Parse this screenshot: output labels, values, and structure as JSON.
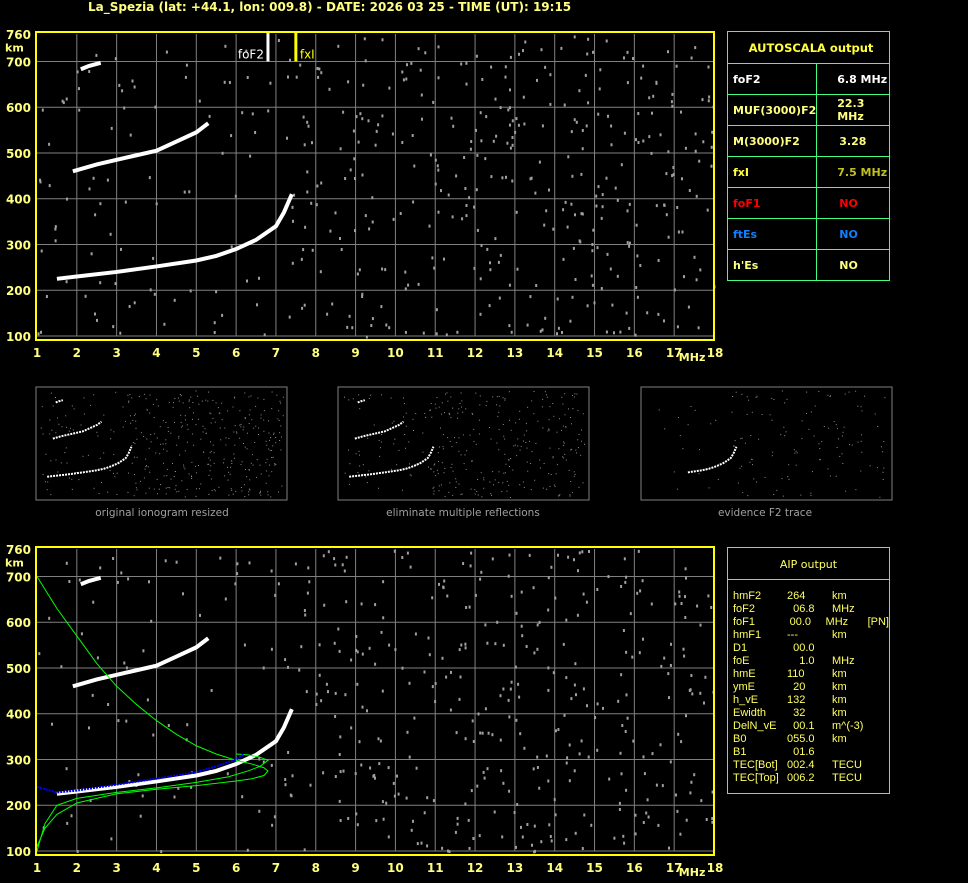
{
  "header": {
    "title": "La_Spezia (lat: +44.1, lon: 009.8) - DATE: 2026 03 25 - TIME (UT): 19:15"
  },
  "colors": {
    "axis": "#ffff00",
    "label": "#ffff80",
    "grid": "#808080",
    "trace": "#ffffff",
    "noise": "#a0a0a0",
    "profile": "#00ff00",
    "aip_trace": "#0000ff",
    "table_border": "#40ff80"
  },
  "chart_data": [
    {
      "type": "scatter",
      "name_printed": "",
      "xlabel": "MHz",
      "ylabel": "km",
      "xlim": [
        1,
        18
      ],
      "ylim": [
        100,
        760
      ],
      "x_ticks": [
        "1",
        "2",
        "3",
        "4",
        "5",
        "6",
        "7",
        "8",
        "9",
        "10",
        "11",
        "12",
        "13",
        "14",
        "15",
        "16",
        "17",
        "18"
      ],
      "y_ticks": [
        "100",
        "200",
        "300",
        "400",
        "500",
        "600",
        "700",
        "760"
      ],
      "grid": true,
      "markers": [
        {
          "label": "foF2",
          "x": 6.8,
          "color": "#ffffff"
        },
        {
          "label": "fxI",
          "x": 7.5,
          "color": "#ffff00"
        }
      ],
      "traces": [
        {
          "x": [
            1.5,
            2,
            3,
            4,
            5,
            5.5,
            6,
            6.5,
            7,
            7.2,
            7.4
          ],
          "y": [
            225,
            230,
            240,
            252,
            265,
            275,
            290,
            310,
            340,
            370,
            410
          ]
        },
        {
          "x": [
            1.9,
            2.5,
            3,
            3.5,
            4,
            4.5,
            5,
            5.3
          ],
          "y": [
            460,
            475,
            485,
            495,
            505,
            525,
            545,
            565
          ]
        },
        {
          "x": [
            2.1,
            2.3,
            2.6
          ],
          "y": [
            683,
            690,
            697
          ]
        }
      ]
    },
    {
      "type": "line",
      "xlabel": "MHz",
      "ylabel": "km",
      "xlim": [
        1,
        18
      ],
      "ylim": [
        100,
        760
      ],
      "x_ticks": [
        "1",
        "2",
        "3",
        "4",
        "5",
        "6",
        "7",
        "8",
        "9",
        "10",
        "11",
        "12",
        "13",
        "14",
        "15",
        "16",
        "17",
        "18"
      ],
      "y_ticks": [
        "100",
        "200",
        "300",
        "400",
        "500",
        "600",
        "700",
        "760"
      ],
      "grid": true,
      "profiles": [
        {
          "color": "#00ff00",
          "x": [
            1,
            1.5,
            2,
            2.5,
            3,
            3.5,
            4,
            4.5,
            5,
            5.5,
            6,
            6.4,
            6.7,
            6.8,
            6.7,
            6.4,
            6,
            5,
            4,
            3,
            2,
            1.5,
            1.2,
            1
          ],
          "y": [
            700,
            630,
            570,
            510,
            460,
            420,
            385,
            355,
            330,
            312,
            298,
            290,
            282,
            275,
            265,
            258,
            253,
            243,
            235,
            225,
            205,
            180,
            150,
            110
          ]
        },
        {
          "color": "#00ff00",
          "x": [
            1,
            1.2,
            1.5,
            2,
            3,
            4,
            5,
            5.8,
            6.3,
            6.6,
            6.8,
            6.6,
            6.3,
            6
          ],
          "y": [
            100,
            160,
            200,
            215,
            228,
            238,
            250,
            262,
            275,
            285,
            298,
            305,
            310,
            312
          ]
        }
      ],
      "aip_trace": {
        "color": "#0000ff",
        "x": [
          1,
          1.5,
          2,
          3,
          4,
          5,
          5.5,
          6,
          6.2
        ],
        "y": [
          240,
          228,
          232,
          245,
          258,
          272,
          285,
          300,
          312
        ]
      }
    }
  ],
  "autoscala": {
    "title": "AUTOSCALA output",
    "rows": [
      {
        "label": "foF2",
        "value": "6.8 MHz",
        "color": "#ffffff",
        "vcolor": "#ffffff"
      },
      {
        "label": "MUF(3000)F2",
        "value": "22.3 MHz",
        "color": "#ffff80",
        "vcolor": "#ffff80"
      },
      {
        "label": "M(3000)F2",
        "value": "3.28",
        "color": "#ffff80",
        "vcolor": "#ffff80"
      },
      {
        "label": "fxI",
        "value": "7.5 MHz",
        "color": "#ffff40",
        "vcolor": "#c0c020"
      },
      {
        "label": "foF1",
        "value": "NO",
        "color": "#ff0000",
        "vcolor": "#ff0000"
      },
      {
        "label": "ftEs",
        "value": "NO",
        "color": "#1080ff",
        "vcolor": "#1080ff"
      },
      {
        "label": "h'Es",
        "value": "NO",
        "color": "#ffff80",
        "vcolor": "#ffff80"
      }
    ]
  },
  "aip": {
    "title": "AIP output",
    "rows": [
      {
        "k": "hmF2",
        "v": "264",
        "u": "km",
        "x": ""
      },
      {
        "k": "foF2",
        "v": "  06.8",
        "u": "MHz",
        "x": ""
      },
      {
        "k": "foF1",
        "v": "  00.0",
        "u": "MHz",
        "x": "[PN]"
      },
      {
        "k": "hmF1",
        "v": "---",
        "u": "km",
        "x": ""
      },
      {
        "k": "D1",
        "v": "  00.0",
        "u": "",
        "x": ""
      },
      {
        "k": "foE",
        "v": "    1.0",
        "u": "MHz",
        "x": ""
      },
      {
        "k": "hmE",
        "v": "110",
        "u": "km",
        "x": ""
      },
      {
        "k": "ymE",
        "v": "  20",
        "u": "km",
        "x": ""
      },
      {
        "k": "h_vE",
        "v": "132",
        "u": "km",
        "x": ""
      },
      {
        "k": "Ewidth",
        "v": "  32",
        "u": "km",
        "x": ""
      },
      {
        "k": "DelN_vE",
        "v": "  00.1",
        "u": "m^(-3)",
        "x": ""
      },
      {
        "k": "B0",
        "v": "055.0",
        "u": "km",
        "x": ""
      },
      {
        "k": "B1",
        "v": "  01.6",
        "u": "",
        "x": ""
      },
      {
        "k": "TEC[Bot]",
        "v": "002.4",
        "u": "TECU",
        "x": ""
      },
      {
        "k": "TEC[Top]",
        "v": "006.2",
        "u": "TECU",
        "x": ""
      }
    ]
  },
  "thumbnails": [
    {
      "caption": "original ionogram resized",
      "density": 1.0
    },
    {
      "caption": "eliminate multiple reflections",
      "density": 0.8
    },
    {
      "caption": "evidence F2 trace",
      "density": 0.35
    }
  ]
}
